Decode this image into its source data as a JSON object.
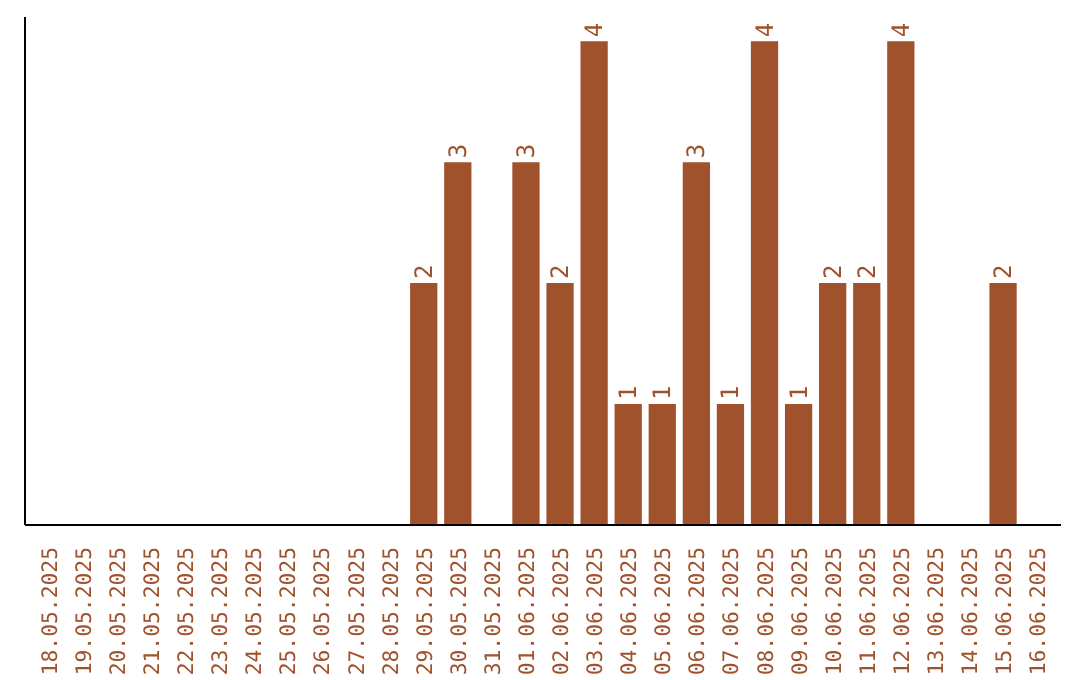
{
  "chart_data": {
    "type": "bar",
    "categories": [
      "18.05.2025",
      "19.05.2025",
      "20.05.2025",
      "21.05.2025",
      "22.05.2025",
      "23.05.2025",
      "24.05.2025",
      "25.05.2025",
      "26.05.2025",
      "27.05.2025",
      "28.05.2025",
      "29.05.2025",
      "30.05.2025",
      "31.05.2025",
      "01.06.2025",
      "02.06.2025",
      "03.06.2025",
      "04.06.2025",
      "05.06.2025",
      "06.06.2025",
      "07.06.2025",
      "08.06.2025",
      "09.06.2025",
      "10.06.2025",
      "11.06.2025",
      "12.06.2025",
      "13.06.2025",
      "14.06.2025",
      "15.06.2025",
      "16.06.2025"
    ],
    "values": [
      0,
      0,
      0,
      0,
      0,
      0,
      0,
      0,
      0,
      0,
      0,
      2,
      3,
      0,
      3,
      2,
      4,
      1,
      1,
      3,
      1,
      4,
      1,
      2,
      2,
      4,
      0,
      0,
      2,
      0
    ],
    "value_labels": [
      null,
      null,
      null,
      null,
      null,
      null,
      null,
      null,
      null,
      null,
      null,
      "2",
      "3",
      null,
      "3",
      "2",
      "4",
      "1",
      "1",
      "3",
      "1",
      "4",
      "1",
      "2",
      "2",
      "4",
      null,
      null,
      "2",
      null
    ],
    "color": "#a0522d",
    "ylim": [
      0,
      4.2
    ],
    "tick_labels": "x",
    "grid": false
  }
}
